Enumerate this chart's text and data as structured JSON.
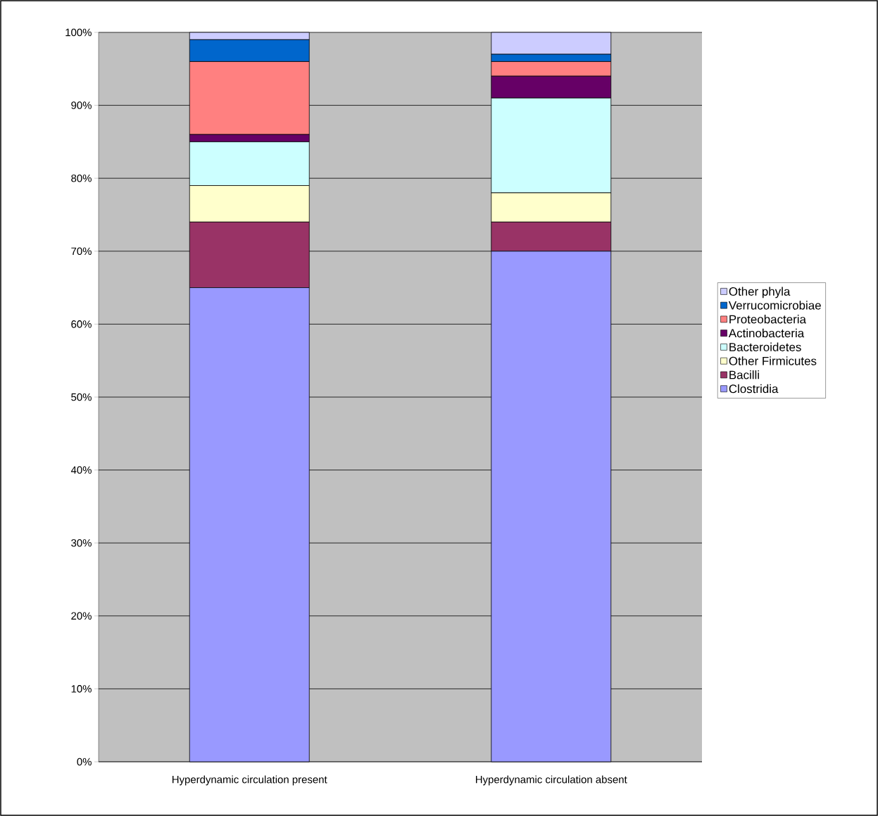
{
  "chart_data": {
    "type": "bar",
    "stacked": true,
    "categories": [
      "Hyperdynamic circulation  present",
      "Hyperdynamic circulation  absent"
    ],
    "series": [
      {
        "name": "Clostridia",
        "color": "#9999ff",
        "values": [
          65,
          70
        ]
      },
      {
        "name": "Bacilli",
        "color": "#993366",
        "values": [
          9,
          4
        ]
      },
      {
        "name": "Other Firmicutes",
        "color": "#ffffcc",
        "values": [
          5,
          4
        ]
      },
      {
        "name": "Bacteroidetes",
        "color": "#ccffff",
        "values": [
          6,
          13
        ]
      },
      {
        "name": "Actinobacteria",
        "color": "#660066",
        "values": [
          1,
          3
        ]
      },
      {
        "name": "Proteobacteria",
        "color": "#ff8080",
        "values": [
          10,
          2
        ]
      },
      {
        "name": "Verrucomicrobiae",
        "color": "#0066cc",
        "values": [
          3,
          1
        ]
      },
      {
        "name": "Other phyla",
        "color": "#ccccff",
        "values": [
          1,
          3
        ]
      }
    ],
    "ylim": [
      0,
      100
    ],
    "yticks": [
      {
        "value": 0,
        "label": "0%"
      },
      {
        "value": 10,
        "label": "10%"
      },
      {
        "value": 20,
        "label": "20%"
      },
      {
        "value": 30,
        "label": "30%"
      },
      {
        "value": 40,
        "label": "40%"
      },
      {
        "value": 50,
        "label": "50%"
      },
      {
        "value": 60,
        "label": "60%"
      },
      {
        "value": 70,
        "label": "70%"
      },
      {
        "value": 80,
        "label": "80%"
      },
      {
        "value": 90,
        "label": "90%"
      },
      {
        "value": 100,
        "label": "100%"
      }
    ],
    "grid": "y",
    "legend": "right"
  }
}
